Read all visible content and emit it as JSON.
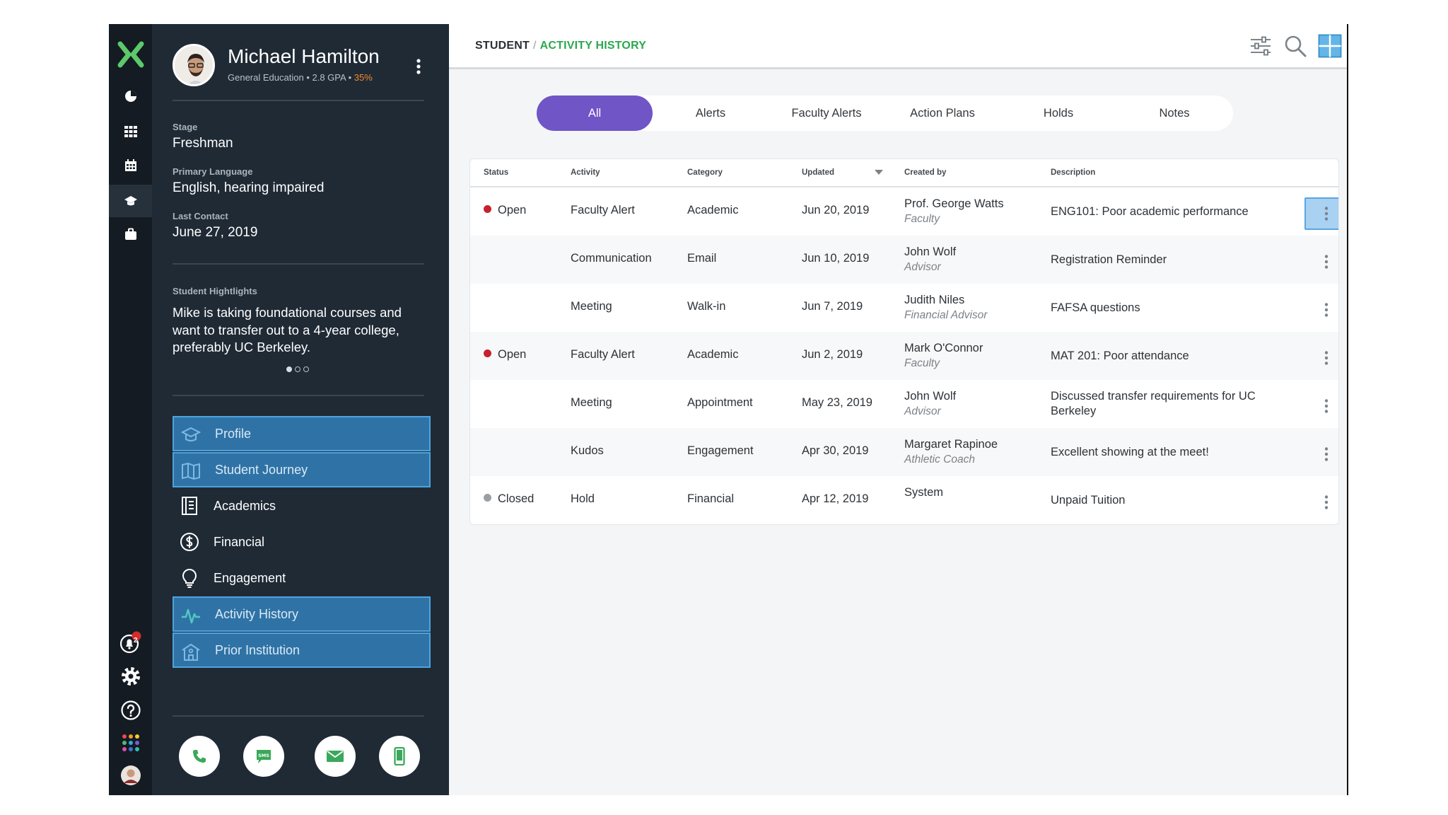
{
  "breadcrumb": {
    "root": "STUDENT",
    "separator": "/",
    "current": "ACTIVITY HISTORY"
  },
  "student": {
    "name": "Michael Hamilton",
    "program": "General Education",
    "gpa": "2.8 GPA",
    "progress": "35%"
  },
  "fields": {
    "stage_label": "Stage",
    "stage": "Freshman",
    "language_label": "Primary Language",
    "language": "English, hearing impaired",
    "contact_label": "Last Contact",
    "contact": "June 27, 2019",
    "highlights_label": "Student Hightlights",
    "highlights": "Mike is taking foundational courses and want to transfer out to a 4-year college, preferably UC Berkeley."
  },
  "nav": [
    {
      "label": "Profile",
      "icon": "graduation-cap-icon",
      "selected": true
    },
    {
      "label": "Student Journey",
      "icon": "map-icon",
      "selected": true
    },
    {
      "label": "Academics",
      "icon": "notebook-icon",
      "selected": false
    },
    {
      "label": "Financial",
      "icon": "dollar-icon",
      "selected": false
    },
    {
      "label": "Engagement",
      "icon": "lightbulb-icon",
      "selected": false
    },
    {
      "label": "Activity History",
      "icon": "pulse-icon",
      "selected": true
    },
    {
      "label": "Prior Institution",
      "icon": "school-icon",
      "selected": true
    }
  ],
  "rail": {
    "notification_count": "2"
  },
  "tabs": [
    "All",
    "Alerts",
    "Faculty Alerts",
    "Action Plans",
    "Holds",
    "Notes"
  ],
  "active_tab": "All",
  "table": {
    "columns": [
      "Status",
      "Activity",
      "Category",
      "Updated",
      "Created by",
      "Description"
    ],
    "rows": [
      {
        "status": "Open",
        "status_color": "#c8202f",
        "activity": "Faculty Alert",
        "category": "Academic",
        "updated": "Jun 20, 2019",
        "creator": "Prof. George Watts",
        "role": "Faculty",
        "description": "ENG101: Poor academic performance"
      },
      {
        "status": "",
        "status_color": "",
        "activity": "Communication",
        "category": "Email",
        "updated": "Jun 10, 2019",
        "creator": "John Wolf",
        "role": "Advisor",
        "description": "Registration Reminder"
      },
      {
        "status": "",
        "status_color": "",
        "activity": "Meeting",
        "category": "Walk-in",
        "updated": "Jun 7, 2019",
        "creator": "Judith Niles",
        "role": "Financial Advisor",
        "description": "FAFSA questions"
      },
      {
        "status": "Open",
        "status_color": "#c8202f",
        "activity": "Faculty Alert",
        "category": "Academic",
        "updated": "Jun 2, 2019",
        "creator": "Mark O'Connor",
        "role": "Faculty",
        "description": "MAT 201: Poor attendance"
      },
      {
        "status": "",
        "status_color": "",
        "activity": "Meeting",
        "category": "Appointment",
        "updated": "May 23, 2019",
        "creator": "John Wolf",
        "role": "Advisor",
        "description": "Discussed transfer requirements for UC Berkeley"
      },
      {
        "status": "",
        "status_color": "",
        "activity": "Kudos",
        "category": "Engagement",
        "updated": "Apr 30, 2019",
        "creator": "Margaret Rapinoe",
        "role": "Athletic Coach",
        "description": "Excellent showing at the meet!"
      },
      {
        "status": "Closed",
        "status_color": "#9a9fa4",
        "activity": "Hold",
        "category": "Financial",
        "updated": "Apr 12, 2019",
        "creator": "System",
        "role": "",
        "description": "Unpaid Tuition"
      }
    ]
  },
  "colors": {
    "accent_purple": "#6f55c6",
    "accent_green": "#2ca84e",
    "nav_selected": "#2f73a6",
    "panel_bg": "#1f2a35",
    "rail_bg": "#141b22"
  }
}
